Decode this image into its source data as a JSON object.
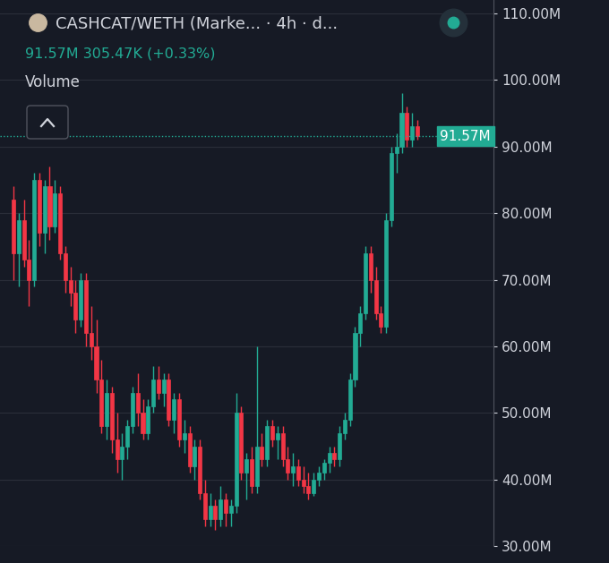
{
  "chart_data": {
    "type": "candlestick",
    "title": "CASHCAT/WETH (Marke... · 4h · d...",
    "subtitle": "91.57M 305.47K (+0.33%)",
    "annotations": [
      "Volume"
    ],
    "open": [
      82000000,
      74000000,
      79000000,
      73000000,
      70000000,
      85000000,
      77000000,
      84000000,
      78000000,
      83000000,
      74000000,
      70000000,
      68000000,
      64000000,
      70000000,
      62000000,
      60000000,
      55000000,
      48000000,
      53000000,
      46000000,
      43000000,
      45000000,
      48000000,
      53000000,
      50000000,
      47000000,
      51000000,
      55000000,
      53000000,
      55000000,
      49000000,
      52000000,
      46000000,
      47000000,
      42000000,
      45000000,
      38000000,
      34000000,
      36000000,
      34000000,
      37000000,
      35000000,
      36000000,
      50000000,
      41000000,
      43000000,
      39000000,
      45000000,
      43000000,
      48000000,
      46000000,
      47000000,
      43000000,
      41000000,
      42000000,
      40000000,
      39000000,
      38000000,
      40000000,
      41000000,
      42500000,
      44000000,
      43000000,
      47000000,
      49000000,
      55000000,
      62000000,
      65000000,
      74000000,
      70000000,
      65000000,
      63000000,
      79000000,
      89000000,
      90000000,
      95000000,
      91000000,
      93000000
    ],
    "high": [
      84000000,
      80000000,
      82000000,
      76000000,
      86000000,
      86000000,
      85000000,
      87000000,
      85000000,
      84000000,
      75000000,
      72000000,
      70000000,
      71000000,
      71000000,
      66000000,
      64000000,
      58000000,
      55000000,
      54000000,
      50000000,
      47000000,
      49000000,
      54000000,
      56000000,
      52000000,
      52000000,
      57000000,
      57000000,
      56000000,
      56000000,
      53000000,
      53000000,
      49000000,
      48000000,
      46000000,
      46000000,
      40000000,
      38000000,
      37000000,
      39000000,
      38000000,
      37000000,
      53000000,
      51000000,
      44000000,
      45000000,
      60000000,
      47000000,
      49000000,
      49000000,
      48000000,
      48000000,
      45000000,
      44000000,
      43000000,
      42000000,
      41000000,
      41000000,
      42000000,
      43000000,
      45000000,
      45000000,
      48000000,
      50000000,
      56000000,
      63000000,
      66000000,
      75000000,
      75000000,
      72000000,
      66000000,
      80000000,
      90000000,
      92000000,
      98000000,
      96000000,
      95000000,
      94000000
    ],
    "low": [
      70000000,
      69000000,
      72000000,
      66000000,
      69000000,
      75000000,
      74000000,
      76000000,
      77000000,
      73000000,
      68000000,
      66000000,
      62000000,
      63000000,
      60000000,
      58000000,
      53000000,
      47000000,
      46000000,
      44000000,
      41000000,
      40000000,
      43000000,
      47000000,
      48000000,
      46000000,
      46000000,
      50000000,
      52000000,
      51000000,
      48000000,
      47000000,
      45000000,
      44000000,
      41000000,
      40000000,
      37000000,
      33000000,
      33000000,
      32500000,
      33000000,
      33000000,
      33000000,
      35000000,
      40000000,
      37000000,
      38000000,
      38000000,
      42000000,
      42000000,
      45000000,
      43000000,
      42000000,
      40000000,
      39000000,
      39000000,
      38000000,
      37000000,
      37500000,
      39000000,
      40000000,
      41000000,
      42000000,
      42000000,
      46000000,
      48000000,
      54000000,
      60000000,
      64000000,
      68000000,
      64000000,
      62000000,
      62000000,
      78000000,
      86000000,
      89000000,
      90000000,
      90000000,
      91000000
    ],
    "close": [
      74000000,
      79000000,
      73000000,
      70000000,
      85000000,
      77000000,
      84000000,
      78000000,
      83000000,
      74000000,
      70000000,
      68000000,
      64000000,
      70000000,
      62000000,
      60000000,
      55000000,
      48000000,
      53000000,
      46000000,
      43000000,
      45000000,
      48000000,
      53000000,
      50000000,
      47000000,
      51000000,
      55000000,
      53000000,
      55000000,
      49000000,
      52000000,
      46000000,
      47000000,
      42000000,
      45000000,
      38000000,
      34000000,
      36000000,
      34000000,
      37000000,
      35000000,
      36000000,
      50000000,
      41000000,
      43000000,
      39000000,
      45000000,
      43000000,
      48000000,
      46000000,
      47000000,
      43000000,
      41000000,
      42000000,
      40000000,
      39000000,
      38000000,
      40000000,
      41000000,
      42500000,
      44000000,
      43000000,
      47000000,
      49000000,
      55000000,
      62000000,
      65000000,
      74000000,
      70000000,
      65000000,
      63000000,
      79000000,
      89000000,
      90000000,
      95000000,
      91000000,
      93000000,
      91570000
    ],
    "last_price": {
      "value": 91570000,
      "label": "91.57M"
    },
    "ylim": [
      30000000,
      112000000
    ],
    "yticks": [
      {
        "value": 30000000,
        "label": "30.00M"
      },
      {
        "value": 40000000,
        "label": "40.00M"
      },
      {
        "value": 50000000,
        "label": "50.00M"
      },
      {
        "value": 60000000,
        "label": "60.00M"
      },
      {
        "value": 70000000,
        "label": "70.00M"
      },
      {
        "value": 80000000,
        "label": "80.00M"
      },
      {
        "value": 90000000,
        "label": "90.00M"
      },
      {
        "value": 100000000,
        "label": "100.00M"
      },
      {
        "value": 110000000,
        "label": "110.00M"
      }
    ],
    "grid": true,
    "tick_labels": "y"
  }
}
